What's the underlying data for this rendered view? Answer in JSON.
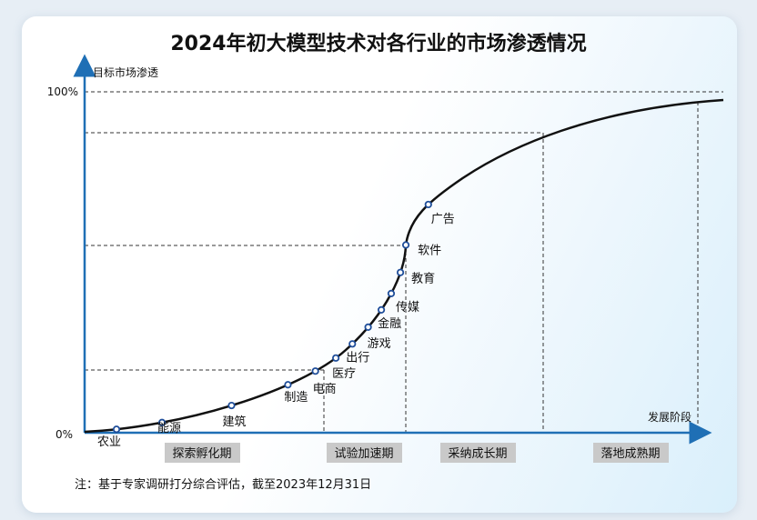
{
  "chart_data": {
    "type": "line",
    "title": "2024年初大模型技术对各行业的市场渗透情况",
    "ylabel": "目标市场渗透",
    "xlabel": "发展阶段",
    "y_ticks": [
      "0%",
      "100%"
    ],
    "ylim": [
      0,
      100
    ],
    "curve": "S-curve (adoption)",
    "points": [
      {
        "label": "农业",
        "penetration": 1
      },
      {
        "label": "能源",
        "penetration": 3
      },
      {
        "label": "建筑",
        "penetration": 8
      },
      {
        "label": "制造",
        "penetration": 14
      },
      {
        "label": "电商",
        "penetration": 18
      },
      {
        "label": "医疗",
        "penetration": 22
      },
      {
        "label": "出行",
        "penetration": 26
      },
      {
        "label": "游戏",
        "penetration": 31
      },
      {
        "label": "金融",
        "penetration": 36
      },
      {
        "label": "传媒",
        "penetration": 41
      },
      {
        "label": "教育",
        "penetration": 47
      },
      {
        "label": "软件",
        "penetration": 55
      },
      {
        "label": "广告",
        "penetration": 67
      }
    ],
    "stages": [
      "探索孵化期",
      "试验加速期",
      "采纳成长期",
      "落地成熟期"
    ],
    "note": "注：基于专家调研打分综合评估，截至2023年12月31日"
  },
  "colors": {
    "axis": "#1f6fb5",
    "curve": "#111111",
    "marker": "#1f4e9a",
    "stage_box": "#c9c9c9"
  }
}
